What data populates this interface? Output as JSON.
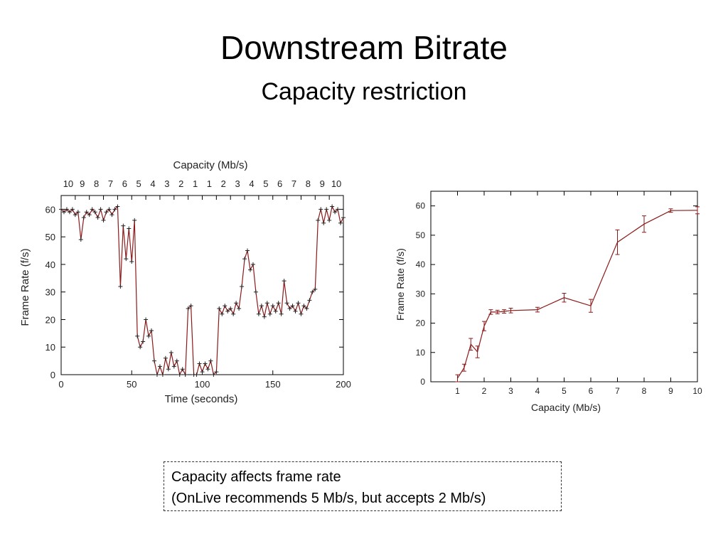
{
  "slide": {
    "title": "Downstream Bitrate",
    "subtitle": "Capacity restriction",
    "callout": [
      "Capacity affects frame rate",
      "(OnLive recommends 5 Mb/s, but accepts 2 Mb/s)"
    ]
  },
  "colors": {
    "series": "#8b1a1a",
    "axis": "#000000"
  },
  "chart_data": [
    {
      "type": "line",
      "xlabel": "Time (seconds)",
      "ylabel": "Frame Rate (f/s)",
      "top_axis_label": "Capacity (Mb/s)",
      "xlim": [
        0,
        200
      ],
      "ylim": [
        0,
        65
      ],
      "x_ticks": [
        "0",
        "50",
        "100",
        "150",
        "200"
      ],
      "y_ticks": [
        "0",
        "10",
        "20",
        "30",
        "40",
        "50",
        "60"
      ],
      "top_ticks": [
        "10",
        "9",
        "8",
        "7",
        "6",
        "5",
        "4",
        "3",
        "2",
        "1",
        "1",
        "2",
        "3",
        "4",
        "5",
        "6",
        "7",
        "8",
        "9",
        "10"
      ],
      "grid": false,
      "series": [
        {
          "x": [
            0,
            2,
            4,
            6,
            8,
            10,
            12,
            14,
            16,
            18,
            20,
            22,
            24,
            26,
            28,
            30,
            32,
            34,
            36,
            38,
            40,
            42,
            44,
            46,
            48,
            50,
            52,
            54,
            56,
            58,
            60,
            62,
            64,
            66,
            68,
            70,
            72,
            74,
            76,
            78,
            80,
            82,
            84,
            86,
            88,
            90,
            92,
            94,
            96,
            98,
            100,
            102,
            104,
            106,
            108,
            110,
            112,
            114,
            116,
            118,
            120,
            122,
            124,
            126,
            128,
            130,
            132,
            134,
            136,
            138,
            140,
            142,
            144,
            146,
            148,
            150,
            152,
            154,
            156,
            158,
            160,
            162,
            164,
            166,
            168,
            170,
            172,
            174,
            176,
            178,
            180,
            182,
            184,
            186,
            188,
            190,
            192,
            194,
            196,
            198,
            200
          ],
          "y": [
            60,
            59,
            60,
            59,
            60,
            58,
            59,
            49,
            57,
            59,
            58,
            60,
            59,
            57,
            60,
            56,
            59,
            60,
            58,
            60,
            61,
            32,
            54,
            42,
            53,
            41,
            56,
            14,
            10,
            12,
            20,
            14,
            16,
            5,
            0,
            3,
            0,
            6,
            2,
            8,
            3,
            5,
            0,
            2,
            0,
            24,
            25,
            0,
            0,
            4,
            1,
            4,
            2,
            5,
            0,
            1,
            24,
            22,
            25,
            23,
            24,
            22,
            26,
            24,
            32,
            42,
            45,
            38,
            40,
            30,
            22,
            25,
            21,
            26,
            22,
            25,
            23,
            26,
            22,
            34,
            26,
            24,
            25,
            23,
            26,
            22,
            25,
            24,
            27,
            30,
            31,
            56,
            60,
            55,
            60,
            56,
            61,
            59,
            60,
            55,
            57
          ]
        }
      ]
    },
    {
      "type": "line",
      "xlabel": "Capacity (Mb/s)",
      "ylabel": "Frame Rate (f/s)",
      "xlim": [
        0,
        10
      ],
      "ylim": [
        0,
        65
      ],
      "x_ticks": [
        "1",
        "2",
        "3",
        "4",
        "5",
        "6",
        "7",
        "8",
        "9",
        "10"
      ],
      "y_ticks": [
        "0",
        "10",
        "20",
        "30",
        "40",
        "50",
        "60"
      ],
      "grid": false,
      "series": [
        {
          "x": [
            1,
            1.25,
            1.5,
            1.75,
            2,
            2.25,
            2.5,
            2.75,
            3,
            4,
            5,
            6,
            7,
            8,
            9,
            10
          ],
          "y": [
            1.2,
            4.8,
            12.8,
            10.2,
            19,
            23.8,
            23.8,
            24,
            24.3,
            24.6,
            28.7,
            25.9,
            47.6,
            53.8,
            58.4,
            58.5
          ],
          "error": [
            1.2,
            1.2,
            2.0,
            2.0,
            1.6,
            0.8,
            0.6,
            0.6,
            0.8,
            0.8,
            1.5,
            2.2,
            4.2,
            2.8,
            0.6,
            1.2
          ]
        }
      ]
    }
  ]
}
